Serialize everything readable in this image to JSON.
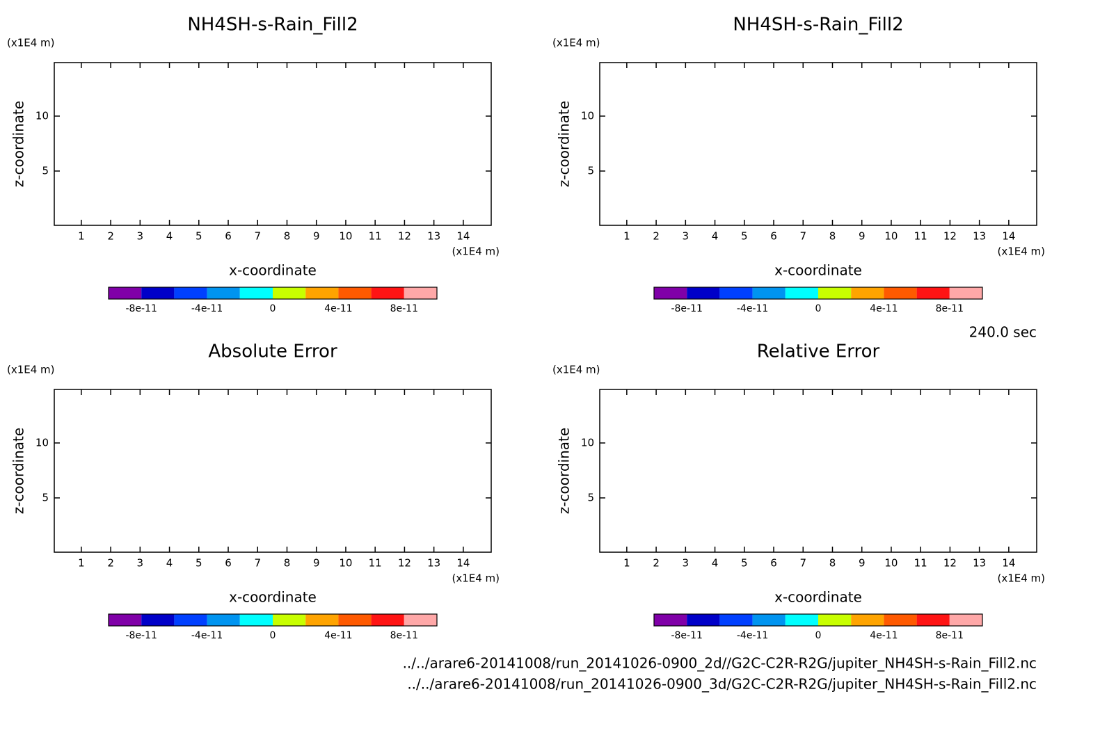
{
  "chart_data": [
    {
      "type": "contour",
      "title": "NH4SH-s-Rain_Fill2",
      "x_label": "x-coordinate",
      "y_label": "z-coordinate",
      "x_unit": "(x1E4 m)",
      "y_unit": "(x1E4 m)",
      "xlim": [
        0.08,
        14.95
      ],
      "ylim": [
        0.06,
        14.87
      ],
      "xticks": [
        1,
        2,
        3,
        4,
        5,
        6,
        7,
        8,
        9,
        10,
        11,
        12,
        13,
        14
      ],
      "yticks": [
        5,
        10
      ],
      "colorbar": {
        "levels": [
          -1e-10,
          -8e-11,
          -6e-11,
          -4e-11,
          -2e-11,
          0,
          2e-11,
          4e-11,
          6e-11,
          8e-11,
          1e-10
        ],
        "colors": [
          "#8000a8",
          "#0000c8",
          "#0040ff",
          "#0094f0",
          "#00ffff",
          "#c8ff00",
          "#ffa400",
          "#ff5a00",
          "#ff1414",
          "#ffa8a8"
        ],
        "ticks": [
          -8e-11,
          -4e-11,
          0,
          4e-11,
          8e-11
        ]
      }
    },
    {
      "type": "contour",
      "title": "NH4SH-s-Rain_Fill2",
      "x_label": "x-coordinate",
      "y_label": "z-coordinate",
      "x_unit": "(x1E4 m)",
      "y_unit": "(x1E4 m)",
      "xlim": [
        0.08,
        14.95
      ],
      "ylim": [
        0.06,
        14.87
      ],
      "xticks": [
        1,
        2,
        3,
        4,
        5,
        6,
        7,
        8,
        9,
        10,
        11,
        12,
        13,
        14
      ],
      "yticks": [
        5,
        10
      ],
      "colorbar": {
        "levels": [
          -1e-10,
          -8e-11,
          -6e-11,
          -4e-11,
          -2e-11,
          0,
          2e-11,
          4e-11,
          6e-11,
          8e-11,
          1e-10
        ],
        "colors": [
          "#8000a8",
          "#0000c8",
          "#0040ff",
          "#0094f0",
          "#00ffff",
          "#c8ff00",
          "#ffa400",
          "#ff5a00",
          "#ff1414",
          "#ffa8a8"
        ],
        "ticks": [
          -8e-11,
          -4e-11,
          0,
          4e-11,
          8e-11
        ]
      }
    },
    {
      "type": "contour",
      "title": "Absolute Error",
      "x_label": "x-coordinate",
      "y_label": "z-coordinate",
      "x_unit": "(x1E4 m)",
      "y_unit": "(x1E4 m)",
      "xlim": [
        0.08,
        14.95
      ],
      "ylim": [
        0.06,
        14.87
      ],
      "xticks": [
        1,
        2,
        3,
        4,
        5,
        6,
        7,
        8,
        9,
        10,
        11,
        12,
        13,
        14
      ],
      "yticks": [
        5,
        10
      ],
      "colorbar": {
        "levels": [
          -1e-10,
          -8e-11,
          -6e-11,
          -4e-11,
          -2e-11,
          0,
          2e-11,
          4e-11,
          6e-11,
          8e-11,
          1e-10
        ],
        "colors": [
          "#8000a8",
          "#0000c8",
          "#0040ff",
          "#0094f0",
          "#00ffff",
          "#c8ff00",
          "#ffa400",
          "#ff5a00",
          "#ff1414",
          "#ffa8a8"
        ],
        "ticks": [
          -8e-11,
          -4e-11,
          0,
          4e-11,
          8e-11
        ]
      }
    },
    {
      "type": "contour",
      "title": "Relative Error",
      "x_label": "x-coordinate",
      "y_label": "z-coordinate",
      "x_unit": "(x1E4 m)",
      "y_unit": "(x1E4 m)",
      "xlim": [
        0.08,
        14.95
      ],
      "ylim": [
        0.06,
        14.87
      ],
      "xticks": [
        1,
        2,
        3,
        4,
        5,
        6,
        7,
        8,
        9,
        10,
        11,
        12,
        13,
        14
      ],
      "yticks": [
        5,
        10
      ],
      "colorbar": {
        "levels": [
          -1e-10,
          -8e-11,
          -6e-11,
          -4e-11,
          -2e-11,
          0,
          2e-11,
          4e-11,
          6e-11,
          8e-11,
          1e-10
        ],
        "colors": [
          "#8000a8",
          "#0000c8",
          "#0040ff",
          "#0094f0",
          "#00ffff",
          "#c8ff00",
          "#ffa400",
          "#ff5a00",
          "#ff1414",
          "#ffa8a8"
        ],
        "ticks": [
          -8e-11,
          -4e-11,
          0,
          4e-11,
          8e-11
        ]
      }
    }
  ],
  "annotation": "240.0 sec",
  "footer": [
    "../../arare6-20141008/run_20141026-0900_2d//G2C-C2R-R2G/jupiter_NH4SH-s-Rain_Fill2.nc",
    "../../arare6-20141008/run_20141026-0900_3d/G2C-C2R-R2G/jupiter_NH4SH-s-Rain_Fill2.nc"
  ]
}
